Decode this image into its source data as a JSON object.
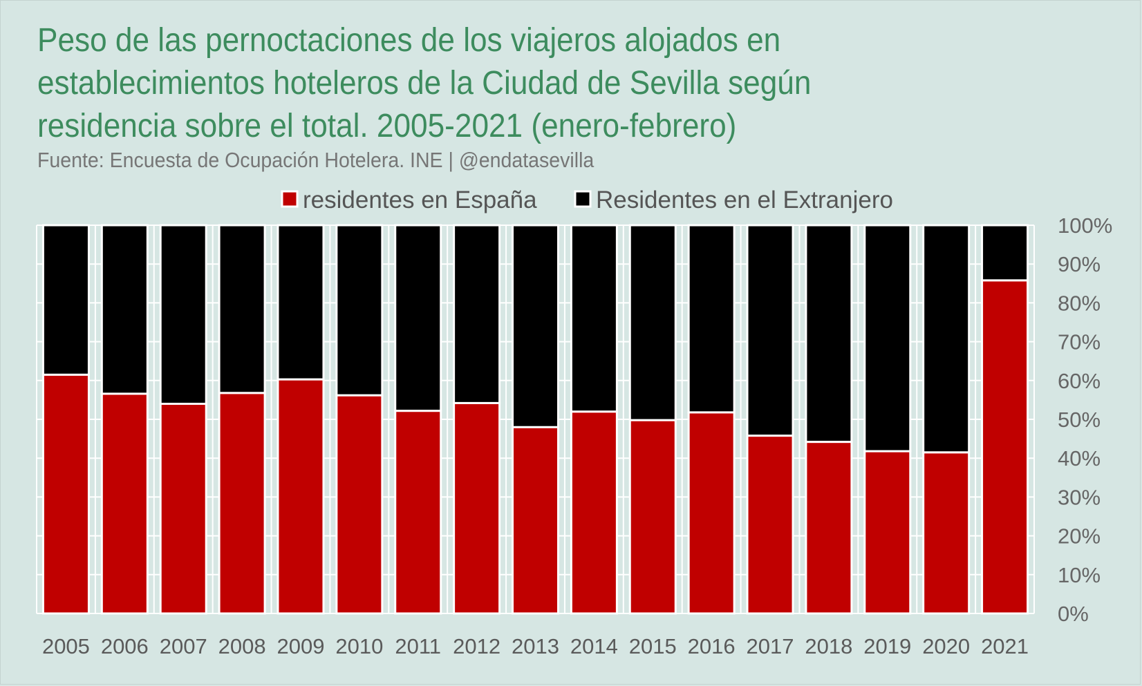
{
  "title": "Peso de las pernoctaciones de los viajeros alojados en establecimientos hoteleros de la Ciudad de Sevilla según residencia sobre el total. 2005-2021 (enero-febrero)",
  "subtitle": "Fuente: Encuesta de Ocupación Hotelera. INE | @endatasevilla",
  "colors": {
    "background": "#d6e6e3",
    "title": "#3d8c5e",
    "espana": "#c00000",
    "extranjero": "#000000",
    "grid": "#ffffff"
  },
  "chart_data": {
    "type": "bar",
    "stacked": true,
    "title": "Peso de las pernoctaciones de los viajeros alojados en establecimientos hoteleros de la Ciudad de Sevilla según residencia sobre el total. 2005-2021 (enero-febrero)",
    "xlabel": "",
    "ylabel": "",
    "ylim": [
      0,
      100
    ],
    "y_ticks": [
      "0%",
      "10%",
      "20%",
      "30%",
      "40%",
      "50%",
      "60%",
      "70%",
      "80%",
      "90%",
      "100%"
    ],
    "y_axis_position": "right",
    "legend_position": "top-center",
    "grid": true,
    "categories": [
      "2005",
      "2006",
      "2007",
      "2008",
      "2009",
      "2010",
      "2011",
      "2012",
      "2013",
      "2014",
      "2015",
      "2016",
      "2017",
      "2018",
      "2019",
      "2020",
      "2021"
    ],
    "series": [
      {
        "name": "residentes en España",
        "color": "#c00000",
        "values": [
          61.5,
          56.6,
          54.0,
          56.8,
          60.3,
          56.2,
          52.2,
          54.2,
          48.0,
          52.0,
          49.8,
          51.8,
          45.8,
          44.2,
          41.8,
          41.5,
          85.8
        ]
      },
      {
        "name": "Residentes en el Extranjero",
        "color": "#000000",
        "values": [
          38.5,
          43.4,
          46.0,
          43.2,
          39.7,
          43.8,
          47.8,
          45.8,
          52.0,
          48.0,
          50.2,
          48.2,
          54.2,
          55.8,
          58.2,
          58.5,
          14.2
        ]
      }
    ]
  }
}
